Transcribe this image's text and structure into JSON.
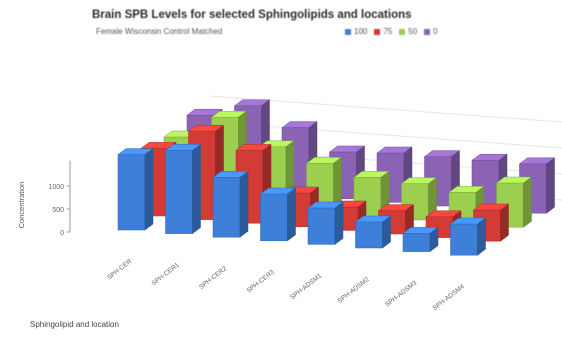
{
  "chart_data": {
    "type": "bar",
    "title": "Brain SPB Levels for selected Sphingolipids and locations",
    "subtitle": "Female Wisconsin Control Matched",
    "xlabel": "Sphingolipid and location",
    "ylabel": "Concentration",
    "ylim": [
      0,
      1500
    ],
    "yticks": [
      "0",
      "500",
      "1000"
    ],
    "grid": true,
    "legend_position": "top-right",
    "categories": [
      "SPH-CER",
      "SPH-CER1",
      "SPH-CER2",
      "SPH-CER3",
      "SPH-ADSM1",
      "SPH-ADSM2",
      "SPH-ADSM3",
      "SPH-ADSM4"
    ],
    "series": [
      {
        "name": "100",
        "color": "#3d7fd9",
        "values": [
          1450,
          1600,
          1150,
          900,
          700,
          500,
          350,
          600
        ]
      },
      {
        "name": "75",
        "color": "#d23b36",
        "values": [
          1300,
          1700,
          1400,
          650,
          450,
          450,
          400,
          600
        ]
      },
      {
        "name": "50",
        "color": "#9ccf4f",
        "values": [
          1250,
          1700,
          1200,
          950,
          750,
          700,
          600,
          850
        ]
      },
      {
        "name": "0",
        "color": "#8a63b5",
        "values": [
          1400,
          1650,
          1300,
          900,
          950,
          950,
          950,
          950
        ]
      }
    ]
  }
}
